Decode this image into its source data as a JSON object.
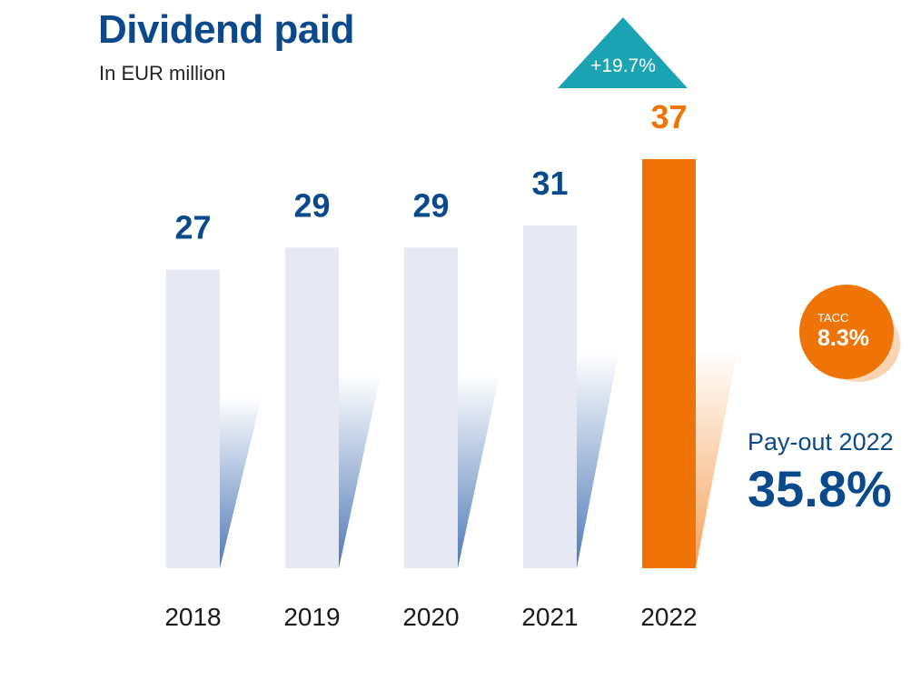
{
  "colors": {
    "title": "#0a4a8c",
    "bar": "#e6e9f4",
    "highlight": "#ef7405",
    "teal": "#1aa4b3",
    "shadow_blue": "#4f79b8",
    "year_text": "#1a1a1a"
  },
  "chart_data": {
    "type": "bar",
    "title": "Dividend paid",
    "subtitle": "In EUR million",
    "categories": [
      "2018",
      "2019",
      "2020",
      "2021",
      "2022"
    ],
    "values": [
      27,
      29,
      29,
      31,
      37
    ],
    "value_labels": [
      "27",
      "29",
      "29",
      "31",
      "37"
    ],
    "highlight_index": 4,
    "growth_label": "+19.7%",
    "tacc": {
      "label": "TACC",
      "value": "8.3%"
    },
    "payout": {
      "label": "Pay-out 2022",
      "value": "35.8%"
    },
    "ylim": [
      0,
      37
    ]
  }
}
